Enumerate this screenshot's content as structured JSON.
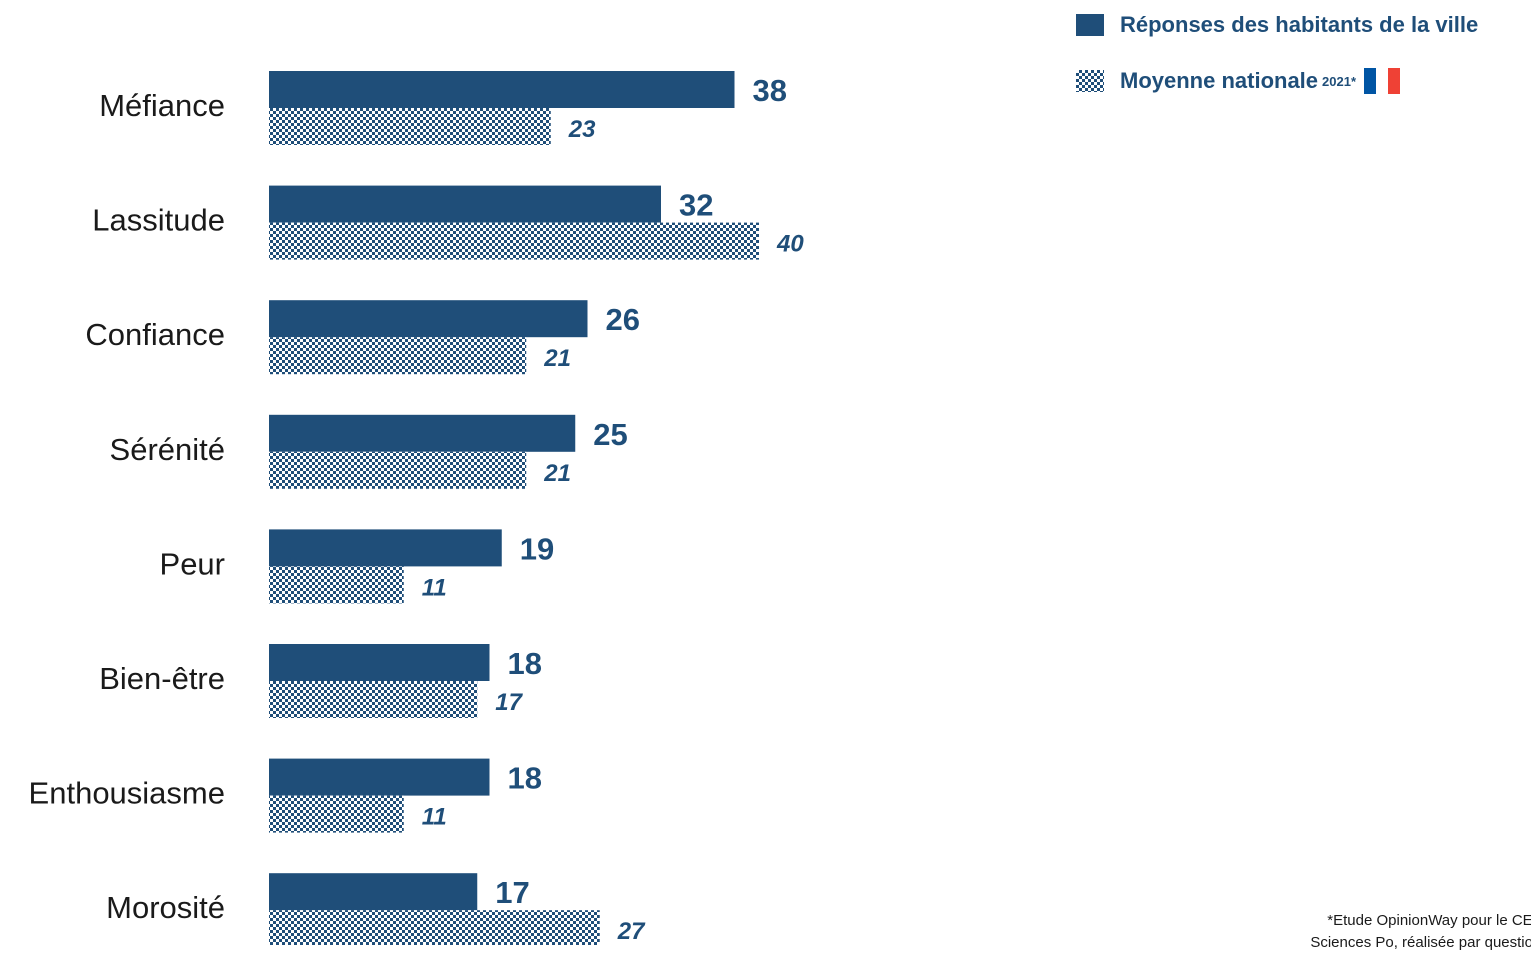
{
  "chart_data": {
    "type": "bar",
    "orientation": "horizontal",
    "categories": [
      "Méfiance",
      "Lassitude",
      "Confiance",
      "Sérénité",
      "Peur",
      "Bien-être",
      "Enthousiasme",
      "Morosité"
    ],
    "series": [
      {
        "name": "Réponses des habitants de la ville",
        "values": [
          38,
          32,
          26,
          25,
          19,
          18,
          18,
          17
        ],
        "color": "#1f4e79",
        "pattern": "solid"
      },
      {
        "name": "Moyenne nationale",
        "values": [
          23,
          40,
          21,
          21,
          11,
          17,
          11,
          27
        ],
        "color": "#1f4e79",
        "pattern": "checkerboard"
      }
    ],
    "xlim": [
      0,
      40
    ],
    "grid": false,
    "legend_position": "top-right"
  },
  "legend": {
    "sup": "2021*",
    "flag_colors": [
      "#0055a4",
      "#ffffff",
      "#ef4135"
    ]
  },
  "footnote": {
    "line1": "*Etude OpinionWay pour le CE",
    "line2": "Sciences Po, réalisée par questionn"
  }
}
